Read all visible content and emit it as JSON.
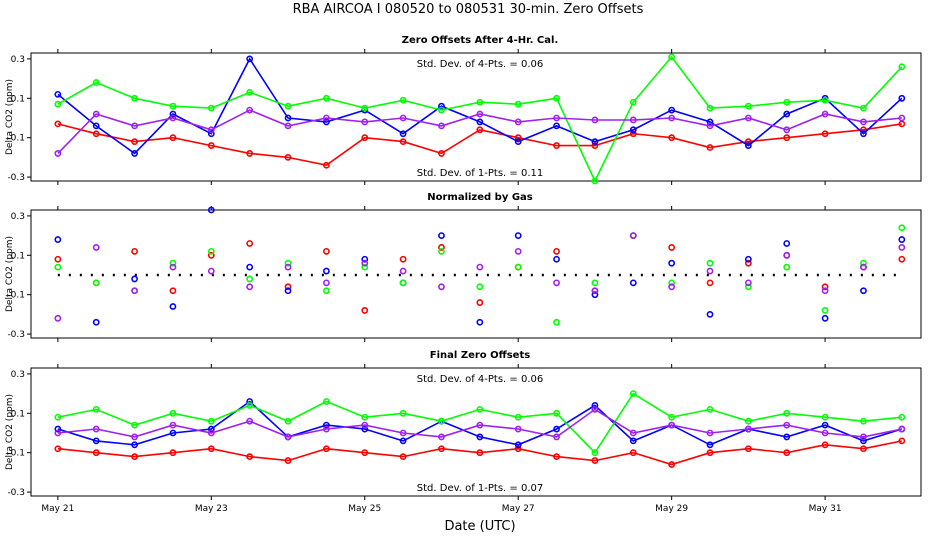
{
  "figure": {
    "title": "RBA   AIRCOA I   080520 to 080531   30-min. Zero Offsets",
    "xlabel": "Date (UTC)"
  },
  "colors": {
    "red": "#ff0000",
    "blue": "#0000ff",
    "green": "#00ff00",
    "purple": "#a020f0",
    "black": "#000000"
  },
  "chart_data": [
    {
      "type": "line",
      "title": "Zero Offsets After 4-Hr. Cal.",
      "ylabel": "Delta CO2 (ppm)",
      "xlabel": "Date (UTC)",
      "x_tick_labels": [
        "May 21",
        "May 23",
        "May 25",
        "May 27",
        "May 29",
        "May 31"
      ],
      "x_ticks_day": [
        21,
        23,
        25,
        27,
        29,
        31
      ],
      "xlim_day": [
        20.65,
        32.25
      ],
      "ylim": [
        -0.32,
        0.33
      ],
      "y_ticks": [
        -0.3,
        -0.1,
        0.1,
        0.3
      ],
      "y_tick_labels": [
        "-0.3",
        "-0.1",
        "0.1",
        "0.3"
      ],
      "annotations": [
        "Std. Dev. of 4-Pts. = 0.06",
        "Std. Dev. of 1-Pts. = 0.11"
      ],
      "series": [
        {
          "name": "red",
          "color": "#ff0000",
          "x_days": [
            21.0,
            21.5,
            22.0,
            22.5,
            23.0,
            23.5,
            24.0,
            24.5,
            25.0,
            25.5,
            26.0,
            26.5,
            27.0,
            27.5,
            28.0,
            28.5,
            29.0,
            29.5,
            30.0,
            30.5,
            31.0,
            31.5,
            32.0
          ],
          "values": [
            -0.03,
            -0.08,
            -0.12,
            -0.1,
            -0.14,
            -0.18,
            -0.2,
            -0.24,
            -0.1,
            -0.12,
            -0.18,
            -0.06,
            -0.1,
            -0.14,
            -0.14,
            -0.08,
            -0.1,
            -0.15,
            -0.12,
            -0.1,
            -0.08,
            -0.06,
            -0.03
          ]
        },
        {
          "name": "blue",
          "color": "#0000ff",
          "x_days": [
            21.0,
            21.5,
            22.0,
            22.5,
            23.0,
            23.5,
            24.0,
            24.5,
            25.0,
            25.5,
            26.0,
            26.5,
            27.0,
            27.5,
            28.0,
            28.5,
            29.0,
            29.5,
            30.0,
            30.5,
            31.0,
            31.5,
            32.0
          ],
          "values": [
            0.12,
            -0.04,
            -0.18,
            0.02,
            -0.08,
            0.3,
            0.0,
            -0.02,
            0.04,
            -0.08,
            0.06,
            -0.02,
            -0.12,
            -0.04,
            -0.12,
            -0.06,
            0.04,
            -0.02,
            -0.14,
            0.02,
            0.1,
            -0.08,
            0.1
          ]
        },
        {
          "name": "green",
          "color": "#00ff00",
          "x_days": [
            21.0,
            21.5,
            22.0,
            22.5,
            23.0,
            23.5,
            24.0,
            24.5,
            25.0,
            25.5,
            26.0,
            26.5,
            27.0,
            27.5,
            28.0,
            28.5,
            29.0,
            29.5,
            30.0,
            30.5,
            31.0,
            31.5,
            32.0
          ],
          "values": [
            0.07,
            0.18,
            0.1,
            0.06,
            0.05,
            0.13,
            0.06,
            0.1,
            0.05,
            0.09,
            0.04,
            0.08,
            0.07,
            0.1,
            -0.32,
            0.08,
            0.31,
            0.05,
            0.06,
            0.08,
            0.09,
            0.05,
            0.26
          ]
        },
        {
          "name": "purple",
          "color": "#a020f0",
          "x_days": [
            21.0,
            21.5,
            22.0,
            22.5,
            23.0,
            23.5,
            24.0,
            24.5,
            25.0,
            25.5,
            26.0,
            26.5,
            27.0,
            27.5,
            28.0,
            28.5,
            29.0,
            29.5,
            30.0,
            30.5,
            31.0,
            31.5,
            32.0
          ],
          "values": [
            -0.18,
            0.02,
            -0.04,
            0.0,
            -0.06,
            0.04,
            -0.04,
            0.0,
            -0.02,
            0.0,
            -0.04,
            0.02,
            -0.02,
            0.0,
            -0.01,
            -0.01,
            0.0,
            -0.04,
            0.0,
            -0.06,
            0.02,
            -0.02,
            0.0
          ]
        }
      ]
    },
    {
      "type": "scatter",
      "title": "Normalized by Gas",
      "ylabel": "Delta CO2 (ppm)",
      "xlabel": "Date (UTC)",
      "x_tick_labels": [
        "May 21",
        "May 23",
        "May 25",
        "May 27",
        "May 29",
        "May 31"
      ],
      "x_ticks_day": [
        21,
        23,
        25,
        27,
        29,
        31
      ],
      "xlim_day": [
        20.65,
        32.25
      ],
      "ylim": [
        -0.32,
        0.33
      ],
      "y_ticks": [
        -0.3,
        -0.1,
        0.1,
        0.3
      ],
      "y_tick_labels": [
        "-0.3",
        "-0.1",
        "0.1",
        "0.3"
      ],
      "annotations": [],
      "reference_line": {
        "name": "black dotted mean",
        "color": "#000000",
        "value": 0.0
      },
      "series": [
        {
          "name": "red",
          "color": "#ff0000",
          "x_days": [
            21.0,
            21.5,
            22.0,
            22.5,
            23.0,
            23.5,
            24.0,
            24.5,
            25.0,
            25.5,
            26.0,
            26.5,
            27.0,
            27.5,
            28.0,
            28.5,
            29.0,
            29.5,
            30.0,
            30.5,
            31.0,
            31.5,
            32.0
          ],
          "values": [
            0.08,
            -0.04,
            0.12,
            -0.08,
            0.1,
            0.16,
            -0.06,
            0.12,
            -0.18,
            0.08,
            0.14,
            -0.14,
            0.04,
            0.12,
            -0.08,
            0.2,
            0.14,
            -0.04,
            0.06,
            0.1,
            -0.06,
            0.04,
            0.08
          ]
        },
        {
          "name": "blue",
          "color": "#0000ff",
          "x_days": [
            21.0,
            21.5,
            22.0,
            22.5,
            23.0,
            23.5,
            24.0,
            24.5,
            25.0,
            25.5,
            26.0,
            26.5,
            27.0,
            27.5,
            28.0,
            28.5,
            29.0,
            29.5,
            30.0,
            30.5,
            31.0,
            31.5,
            32.0
          ],
          "values": [
            0.18,
            -0.24,
            -0.02,
            -0.16,
            0.33,
            0.04,
            -0.08,
            0.02,
            0.08,
            -0.04,
            0.2,
            -0.24,
            0.2,
            0.08,
            -0.1,
            -0.04,
            0.06,
            -0.2,
            0.08,
            0.16,
            -0.22,
            -0.08,
            0.18
          ]
        },
        {
          "name": "green",
          "color": "#00ff00",
          "x_days": [
            21.0,
            21.5,
            22.0,
            22.5,
            23.0,
            23.5,
            24.0,
            24.5,
            25.0,
            25.5,
            26.0,
            26.5,
            27.0,
            27.5,
            28.0,
            28.5,
            29.0,
            29.5,
            30.0,
            30.5,
            31.0,
            31.5,
            32.0
          ],
          "values": [
            0.04,
            -0.04,
            -0.08,
            0.06,
            0.12,
            -0.02,
            0.06,
            -0.08,
            0.04,
            -0.04,
            0.12,
            -0.06,
            0.04,
            -0.24,
            -0.04,
            0.2,
            -0.04,
            0.06,
            -0.06,
            0.04,
            -0.18,
            0.06,
            0.24
          ]
        },
        {
          "name": "purple",
          "color": "#a020f0",
          "x_days": [
            21.0,
            21.5,
            22.0,
            22.5,
            23.0,
            23.5,
            24.0,
            24.5,
            25.0,
            25.5,
            26.0,
            26.5,
            27.0,
            27.5,
            28.0,
            28.5,
            29.0,
            29.5,
            30.0,
            30.5,
            31.0,
            31.5,
            32.0
          ],
          "values": [
            -0.22,
            0.14,
            -0.08,
            0.04,
            0.02,
            -0.06,
            0.04,
            -0.04,
            0.06,
            0.02,
            -0.06,
            0.04,
            0.12,
            -0.04,
            -0.08,
            0.2,
            -0.06,
            0.02,
            -0.04,
            0.1,
            -0.08,
            0.04,
            0.14
          ]
        }
      ]
    },
    {
      "type": "line",
      "title": "Final Zero Offsets",
      "ylabel": "Delta CO2 (ppm)",
      "xlabel": "Date (UTC)",
      "x_tick_labels": [
        "May 21",
        "May 23",
        "May 25",
        "May 27",
        "May 29",
        "May 31"
      ],
      "x_ticks_day": [
        21,
        23,
        25,
        27,
        29,
        31
      ],
      "xlim_day": [
        20.65,
        32.25
      ],
      "ylim": [
        -0.32,
        0.33
      ],
      "y_ticks": [
        -0.3,
        -0.1,
        0.1,
        0.3
      ],
      "y_tick_labels": [
        "-0.3",
        "-0.1",
        "0.1",
        "0.3"
      ],
      "annotations": [
        "Std. Dev. of 4-Pts. = 0.06",
        "Std. Dev. of 1-Pts. = 0.07"
      ],
      "series": [
        {
          "name": "red",
          "color": "#ff0000",
          "x_days": [
            21.0,
            21.5,
            22.0,
            22.5,
            23.0,
            23.5,
            24.0,
            24.5,
            25.0,
            25.5,
            26.0,
            26.5,
            27.0,
            27.5,
            28.0,
            28.5,
            29.0,
            29.5,
            30.0,
            30.5,
            31.0,
            31.5,
            32.0
          ],
          "values": [
            -0.08,
            -0.1,
            -0.12,
            -0.1,
            -0.08,
            -0.12,
            -0.14,
            -0.08,
            -0.1,
            -0.12,
            -0.08,
            -0.1,
            -0.08,
            -0.12,
            -0.14,
            -0.1,
            -0.16,
            -0.1,
            -0.08,
            -0.1,
            -0.06,
            -0.08,
            -0.04
          ]
        },
        {
          "name": "blue",
          "color": "#0000ff",
          "x_days": [
            21.0,
            21.5,
            22.0,
            22.5,
            23.0,
            23.5,
            24.0,
            24.5,
            25.0,
            25.5,
            26.0,
            26.5,
            27.0,
            27.5,
            28.0,
            28.5,
            29.0,
            29.5,
            30.0,
            30.5,
            31.0,
            31.5,
            32.0
          ],
          "values": [
            0.02,
            -0.04,
            -0.06,
            0.0,
            0.02,
            0.16,
            -0.02,
            0.04,
            0.02,
            -0.04,
            0.06,
            -0.02,
            -0.06,
            0.02,
            0.14,
            -0.04,
            0.04,
            -0.06,
            0.02,
            -0.02,
            0.04,
            -0.04,
            0.02
          ]
        },
        {
          "name": "green",
          "color": "#00ff00",
          "x_days": [
            21.0,
            21.5,
            22.0,
            22.5,
            23.0,
            23.5,
            24.0,
            24.5,
            25.0,
            25.5,
            26.0,
            26.5,
            27.0,
            27.5,
            28.0,
            28.5,
            29.0,
            29.5,
            30.0,
            30.5,
            31.0,
            31.5,
            32.0
          ],
          "values": [
            0.08,
            0.12,
            0.04,
            0.1,
            0.06,
            0.14,
            0.06,
            0.16,
            0.08,
            0.1,
            0.06,
            0.12,
            0.08,
            0.1,
            -0.1,
            0.2,
            0.08,
            0.12,
            0.06,
            0.1,
            0.08,
            0.06,
            0.08
          ]
        },
        {
          "name": "purple",
          "color": "#a020f0",
          "x_days": [
            21.0,
            21.5,
            22.0,
            22.5,
            23.0,
            23.5,
            24.0,
            24.5,
            25.0,
            25.5,
            26.0,
            26.5,
            27.0,
            27.5,
            28.0,
            28.5,
            29.0,
            29.5,
            30.0,
            30.5,
            31.0,
            31.5,
            32.0
          ],
          "values": [
            0.0,
            0.02,
            -0.02,
            0.04,
            0.0,
            0.06,
            -0.02,
            0.02,
            0.04,
            0.0,
            -0.02,
            0.04,
            0.02,
            -0.02,
            0.12,
            0.0,
            0.04,
            0.0,
            0.02,
            0.04,
            0.0,
            -0.02,
            0.02
          ]
        }
      ]
    }
  ]
}
